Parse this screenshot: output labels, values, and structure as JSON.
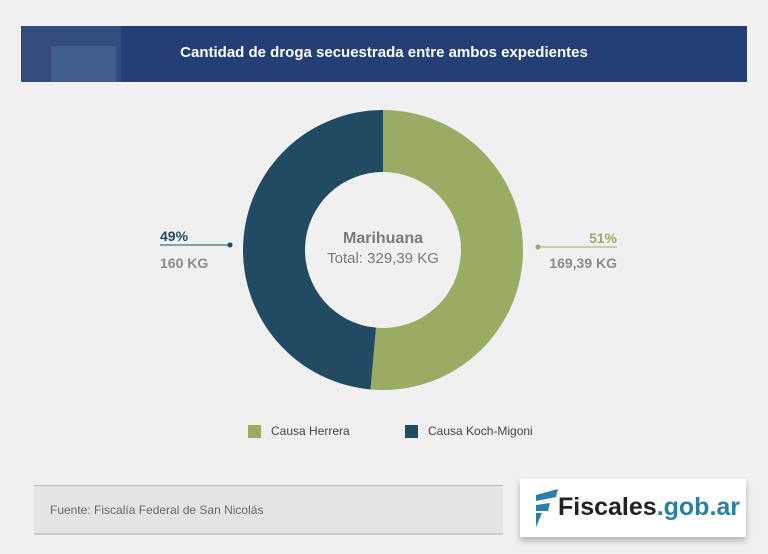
{
  "header": {
    "title": "Cantidad de droga secuestrada entre ambos expedientes"
  },
  "chart_data": {
    "type": "pie",
    "title": "Cantidad de droga secuestrada entre ambos expedientes",
    "center_title": "Marihuana",
    "center_subtitle": "Total: 329,39 KG",
    "categories": [
      "Causa Herrera",
      "Causa Koch-Migoni"
    ],
    "values": [
      169.39,
      160
    ],
    "percent_labels": [
      "51%",
      "49%"
    ],
    "value_labels": [
      "169,39 KG",
      "160 KG"
    ],
    "colors": [
      "#9aab63",
      "#214a63"
    ],
    "legend": "bottom"
  },
  "footer": {
    "source": "Fuente: Fiscalía Federal de San Nicolás",
    "logo_main": "Fiscales",
    "logo_suffix": ".gob.ar"
  }
}
